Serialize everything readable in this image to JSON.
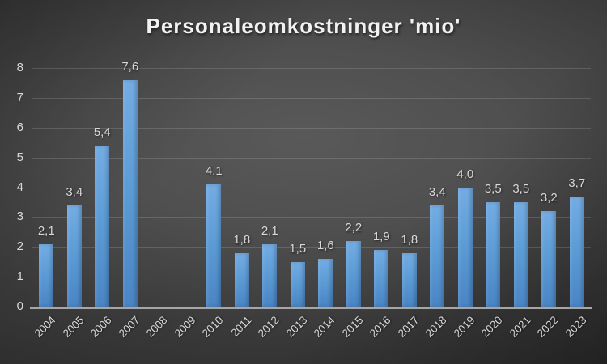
{
  "chart_data": {
    "type": "bar",
    "title": "Personaleomkostninger 'mio'",
    "xlabel": "",
    "ylabel": "",
    "categories": [
      "2004",
      "2005",
      "2006",
      "2007",
      "2008",
      "2009",
      "2010",
      "2011",
      "2012",
      "2013",
      "2014",
      "2015",
      "2016",
      "2017",
      "2018",
      "2019",
      "2020",
      "2021",
      "2022",
      "2023"
    ],
    "values": [
      2.1,
      3.4,
      5.4,
      7.6,
      null,
      null,
      4.1,
      1.8,
      2.1,
      1.5,
      1.6,
      2.2,
      1.9,
      1.8,
      3.4,
      4.0,
      3.5,
      3.5,
      3.2,
      3.7
    ],
    "value_labels": [
      "2,1",
      "3,4",
      "5,4",
      "7,6",
      null,
      null,
      "4,1",
      "1,8",
      "2,1",
      "1,5",
      "1,6",
      "2,2",
      "1,9",
      "1,8",
      "3,4",
      "4,0",
      "3,5",
      "3,5",
      "3,2",
      "3,7"
    ],
    "ylim": [
      0,
      8
    ],
    "ytick_interval": 1,
    "yticks": [
      "0",
      "1",
      "2",
      "3",
      "4",
      "5",
      "6",
      "7",
      "8"
    ],
    "grid": true,
    "legend": "none",
    "x_label_rotation_deg": -45,
    "decimal_separator": ",",
    "colors": {
      "bar_base": "#5b9bd5",
      "bar_gradient_top": "#74ace3",
      "bar_gradient_bottom": "#4a84c4",
      "background_center": "#595959",
      "background_edge": "#262626",
      "gridline": "rgba(255,255,255,0.14)",
      "axis_line": "#a6a6a6",
      "tick_label": "#d9d9d9",
      "data_label": "#d9d9d9",
      "title": "#f2f2f2"
    }
  }
}
